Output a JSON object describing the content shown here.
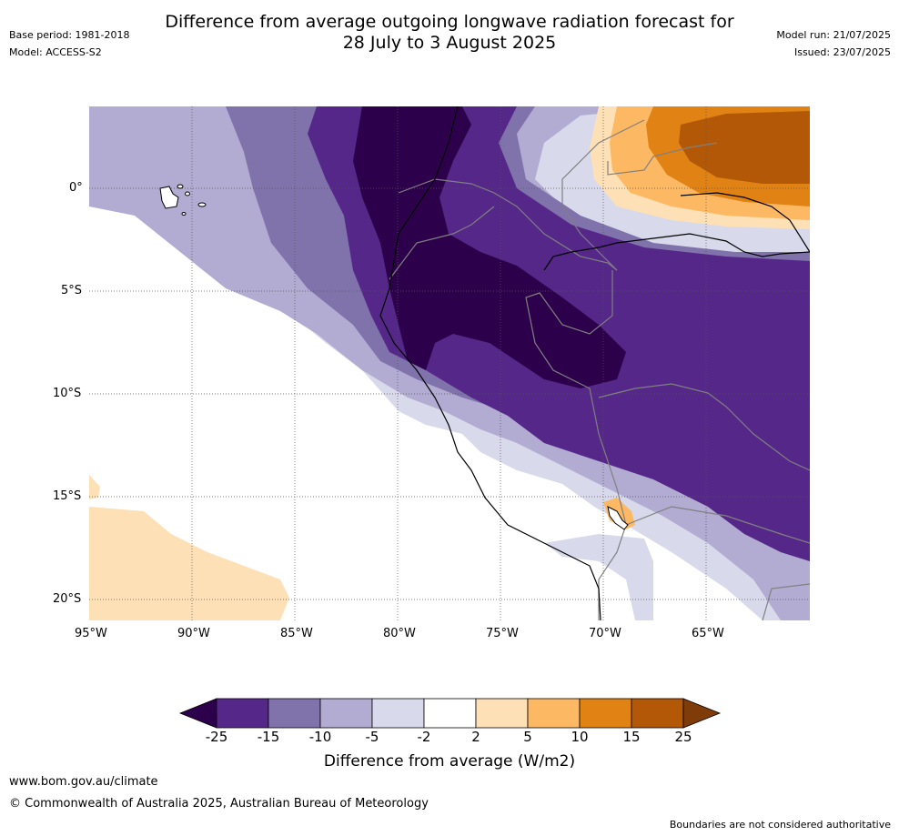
{
  "header": {
    "title_line1": "Difference from average outgoing longwave radiation forecast for",
    "title_line2": "28 July to 3 August 2025",
    "base_period": "Base period: 1981-2018",
    "model": "Model: ACCESS-S2",
    "model_run": "Model run: 21/07/2025",
    "issued": "Issued: 23/07/2025"
  },
  "map": {
    "lon_labels": [
      "95°W",
      "90°W",
      "85°W",
      "80°W",
      "75°W",
      "70°W",
      "65°W"
    ],
    "lat_labels": [
      "0°",
      "5°S",
      "10°S",
      "15°S",
      "20°S"
    ],
    "gridlines": "dotted",
    "features": [
      "coastline",
      "national-borders",
      "galapagos-islands",
      "lake-titicaca"
    ]
  },
  "colorbar": {
    "title": "Difference from average (W/m2)",
    "ticks": [
      "-25",
      "-15",
      "-10",
      "-5",
      "-2",
      "2",
      "5",
      "10",
      "15",
      "25"
    ],
    "colors": [
      "#2d004b",
      "#542788",
      "#8073ac",
      "#b2abd2",
      "#d8daeb",
      "#ffffff",
      "#fee0b6",
      "#fdb863",
      "#e08214",
      "#b35806",
      "#7f3b08"
    ],
    "extend": "both"
  },
  "footer": {
    "url": "www.bom.gov.au/climate",
    "copyright": "© Commonwealth of Australia 2025, Australian Bureau of Meteorology",
    "disclaimer": "Boundaries are not considered authoritative"
  }
}
